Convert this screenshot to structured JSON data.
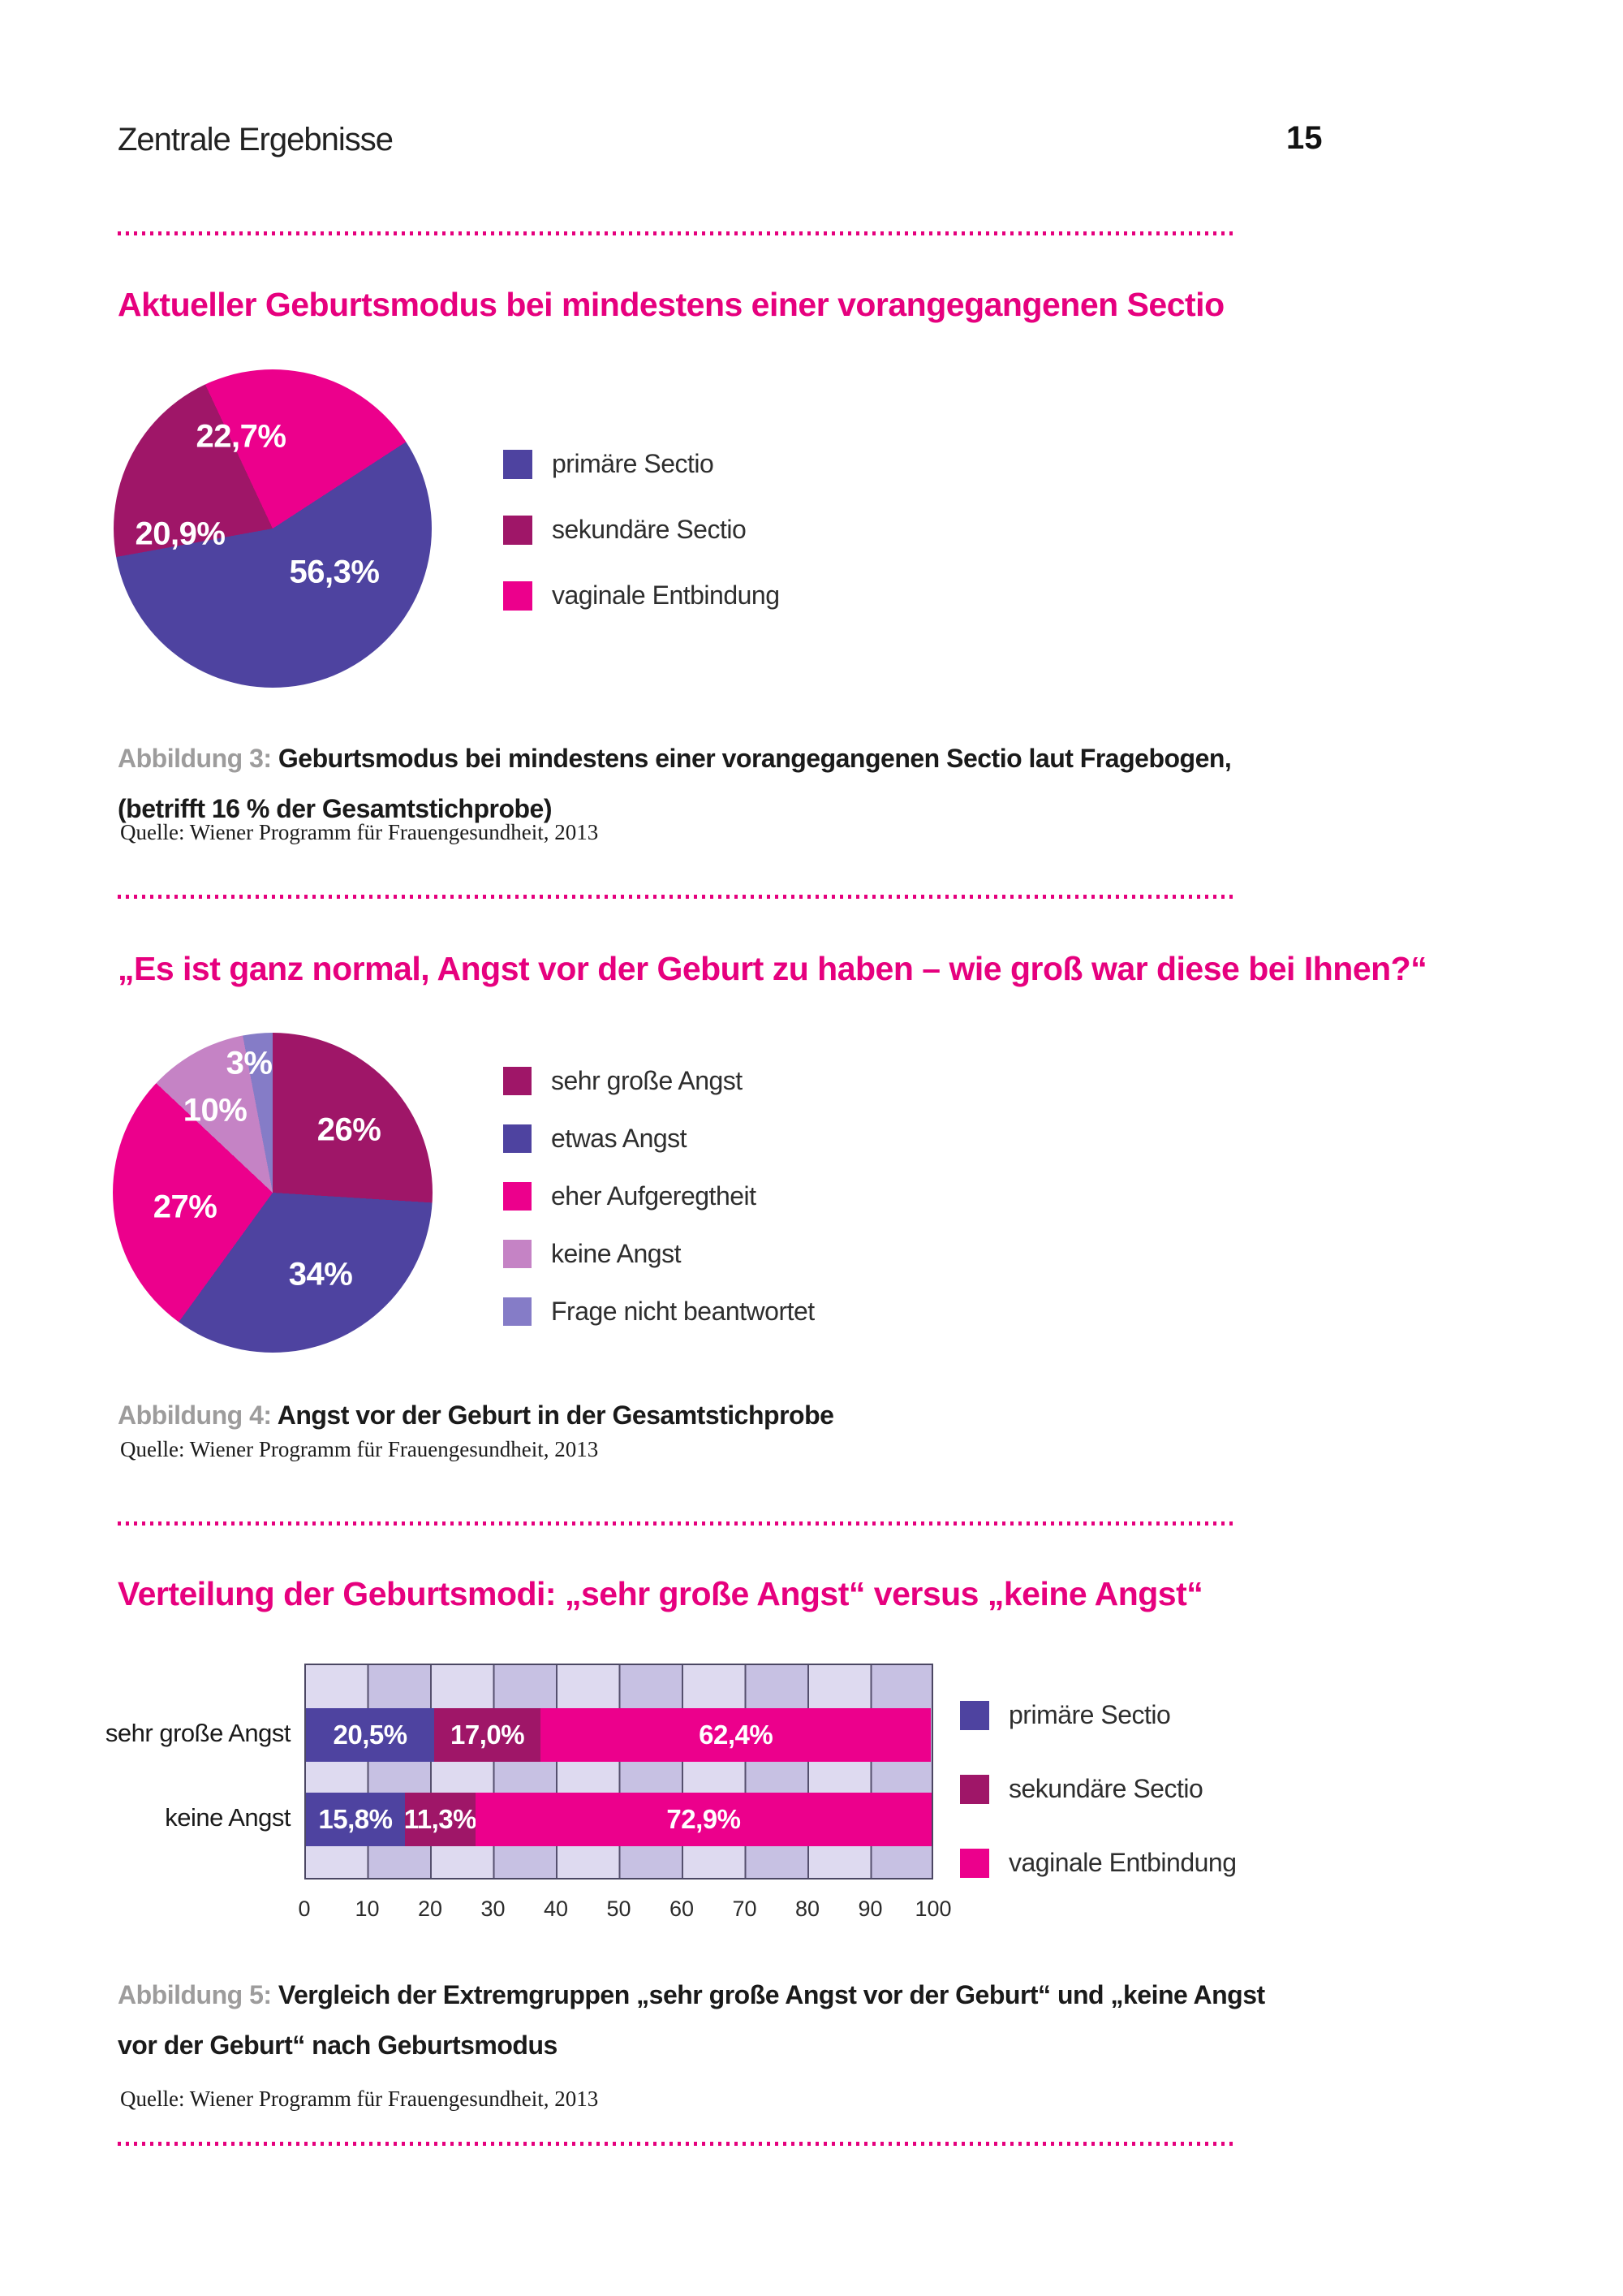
{
  "page": {
    "header_title": "Zentrale Ergebnisse",
    "page_number": "15"
  },
  "colors": {
    "accent_pink": "#e6007e",
    "primary_purple": "#4e43a0",
    "secondary_magenta": "#9f1668",
    "vaginal_pink": "#ec008c",
    "orchid": "#c583c5",
    "periwinkle": "#857cc7",
    "caption_gray": "#9d9c9c",
    "stripe_light": "#dedaf0",
    "stripe_dark": "#c7c1e3"
  },
  "sections": {
    "sectio": {
      "title": "Aktueller Geburtsmodus bei mindestens einer vorangegangenen Sectio",
      "caption_label": "Abbildung 3:",
      "caption_text": "Geburtsmodus bei mindestens einer vorangegangenen Sectio laut Fragebogen, (betrifft 16 % der Gesamtstichprobe)",
      "source": "Quelle: Wiener Programm für Frauengesundheit, 2013"
    },
    "angst": {
      "title": "„Es ist ganz normal, Angst vor der Geburt zu haben – wie groß war diese bei Ihnen?“",
      "caption_label": "Abbildung 4:",
      "caption_text": "Angst vor der Geburt in der Gesamtstichprobe",
      "source": "Quelle: Wiener Programm für Frauengesundheit, 2013"
    },
    "verteilung": {
      "title": "Verteilung der Geburtsmodi: „sehr große Angst“ versus „keine Angst“",
      "caption_label": "Abbildung 5:",
      "caption_text": "Vergleich der Extremgruppen „sehr große Angst vor der Geburt“ und „keine Angst vor der Geburt“ nach Geburtsmodus",
      "source": "Quelle: Wiener Programm für Frauengesundheit, 2013"
    }
  },
  "chart_data": [
    {
      "type": "pie",
      "title": "Aktueller Geburtsmodus bei mindestens einer vorangegangenen Sectio",
      "start_deg": 57,
      "legend_position": "right",
      "slices": [
        {
          "label": "primäre Sectio",
          "value": 56.3,
          "display": "56,3%",
          "color": "#4e43a0"
        },
        {
          "label": "sekundäre Sectio",
          "value": 20.9,
          "display": "20,9%",
          "color": "#9f1668"
        },
        {
          "label": "vaginale Entbindung",
          "value": 22.7,
          "display": "22,7%",
          "color": "#ec008c"
        }
      ]
    },
    {
      "type": "pie",
      "title": "Angst vor der Geburt in der Gesamtstichprobe",
      "start_deg": 0,
      "legend_position": "right",
      "slices": [
        {
          "label": "sehr große Angst",
          "value": 26,
          "display": "26%",
          "color": "#9f1668"
        },
        {
          "label": "etwas Angst",
          "value": 34,
          "display": "34%",
          "color": "#4e43a0"
        },
        {
          "label": "eher Aufgeregtheit",
          "value": 27,
          "display": "27%",
          "color": "#ec008c"
        },
        {
          "label": "keine Angst",
          "value": 10,
          "display": "10%",
          "color": "#c583c5"
        },
        {
          "label": "Frage nicht beantwortet",
          "value": 3,
          "display": "3%",
          "color": "#857cc7"
        }
      ]
    },
    {
      "type": "bar",
      "orientation": "horizontal-stacked",
      "title": "Verteilung der Geburtsmodi: sehr große Angst versus keine Angst",
      "categories": [
        "sehr große Angst",
        "keine Angst"
      ],
      "series": [
        {
          "name": "primäre Sectio",
          "color": "#4e43a0",
          "values": [
            20.5,
            15.8
          ],
          "displays": [
            "20,5%",
            "15,8%"
          ]
        },
        {
          "name": "sekundäre Sectio",
          "color": "#9f1668",
          "values": [
            17.0,
            11.3
          ],
          "displays": [
            "17,0%",
            "11,3%"
          ]
        },
        {
          "name": "vaginale Entbindung",
          "color": "#ec008c",
          "values": [
            62.4,
            72.9
          ],
          "displays": [
            "62,4%",
            "72,9%"
          ]
        }
      ],
      "x_ticks": [
        0,
        10,
        20,
        30,
        40,
        50,
        60,
        70,
        80,
        90,
        100
      ],
      "xlim": [
        0,
        100
      ],
      "grid": "vertical",
      "legend_position": "right"
    }
  ]
}
